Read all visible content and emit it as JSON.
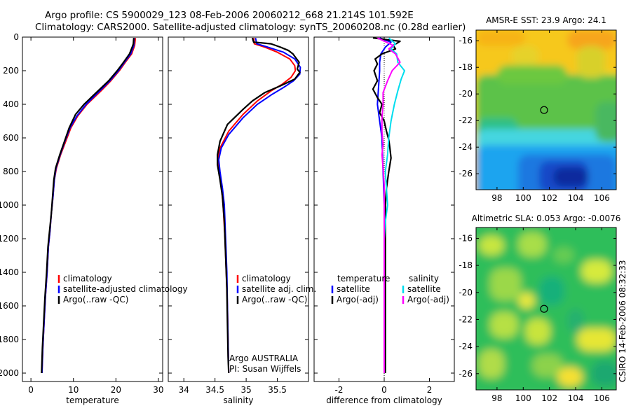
{
  "figure": {
    "title_line1": "Argo profile: CS 5900029_123 08-Feb-2006 20060212_668 21.214S 101.592E",
    "title_line2": "Climatology: CARS2000. Satellite-adjusted climatology: synTS_20060208.nc (0.28d earlier)",
    "side_label": "CSIRO 14-Feb-2006 08:32:33"
  },
  "colors": {
    "climatology": "#ff0000",
    "satellite": "#0000ff",
    "argo": "#000000",
    "sat_temp": "#0000ff",
    "sat_sal": "#00ddee",
    "argo_sal": "#ff00ff"
  },
  "chart_data": [
    {
      "type": "line",
      "id": "temperature",
      "xlabel": "temperature",
      "ylabel": "",
      "xlim": [
        -2,
        31
      ],
      "ylim": [
        2050,
        0
      ],
      "y_reversed": true,
      "xticks": [
        0,
        10,
        20,
        30
      ],
      "yticks": [
        0,
        200,
        400,
        600,
        800,
        1000,
        1200,
        1400,
        1600,
        1800,
        2000
      ],
      "legend": [
        "climatology",
        "satellite-adjusted climatology",
        "Argo(..raw -QC)"
      ],
      "series": [
        {
          "name": "climatology",
          "color": "#ff0000",
          "points": [
            [
              24.6,
              5
            ],
            [
              24.4,
              50
            ],
            [
              23.7,
              100
            ],
            [
              22.2,
              150
            ],
            [
              20.8,
              200
            ],
            [
              18.8,
              260
            ],
            [
              16.5,
              320
            ],
            [
              13.2,
              400
            ],
            [
              11,
              470
            ],
            [
              9.4,
              540
            ],
            [
              8.2,
              620
            ],
            [
              7,
              700
            ],
            [
              6,
              780
            ],
            [
              5.5,
              850
            ],
            [
              5.2,
              950
            ],
            [
              4.8,
              1050
            ],
            [
              4.5,
              1150
            ],
            [
              4.1,
              1250
            ],
            [
              3.8,
              1400
            ],
            [
              3.4,
              1550
            ],
            [
              3.1,
              1700
            ],
            [
              2.8,
              1850
            ],
            [
              2.6,
              2000
            ]
          ]
        },
        {
          "name": "satellite-adjusted climatology",
          "color": "#0000ff",
          "points": [
            [
              24.3,
              5
            ],
            [
              24.2,
              50
            ],
            [
              23.5,
              100
            ],
            [
              22,
              150
            ],
            [
              20.6,
              200
            ],
            [
              18.6,
              260
            ],
            [
              16.2,
              320
            ],
            [
              13,
              400
            ],
            [
              10.8,
              470
            ],
            [
              9.2,
              540
            ],
            [
              8,
              620
            ],
            [
              6.9,
              700
            ],
            [
              5.9,
              780
            ],
            [
              5.5,
              850
            ],
            [
              5.2,
              950
            ],
            [
              4.8,
              1050
            ],
            [
              4.5,
              1150
            ],
            [
              4.1,
              1250
            ],
            [
              3.8,
              1400
            ],
            [
              3.4,
              1550
            ],
            [
              3.1,
              1700
            ],
            [
              2.8,
              1850
            ],
            [
              2.6,
              2000
            ]
          ]
        },
        {
          "name": "Argo(..raw -QC)",
          "color": "#000000",
          "points": [
            [
              24.2,
              5
            ],
            [
              24.1,
              40
            ],
            [
              23.9,
              55
            ],
            [
              23.2,
              100
            ],
            [
              21.8,
              150
            ],
            [
              20.3,
              200
            ],
            [
              18.3,
              260
            ],
            [
              15.8,
              320
            ],
            [
              12.5,
              400
            ],
            [
              10.5,
              460
            ],
            [
              9,
              540
            ],
            [
              7.9,
              620
            ],
            [
              6.8,
              700
            ],
            [
              5.8,
              780
            ],
            [
              5.4,
              850
            ],
            [
              5.1,
              950
            ],
            [
              4.8,
              1050
            ],
            [
              4.4,
              1150
            ],
            [
              4,
              1250
            ],
            [
              3.7,
              1400
            ],
            [
              3.3,
              1550
            ],
            [
              3,
              1700
            ],
            [
              2.7,
              1850
            ],
            [
              2.5,
              2000
            ]
          ]
        }
      ]
    },
    {
      "type": "line",
      "id": "salinity",
      "xlabel": "salinity",
      "xlim": [
        33.75,
        36
      ],
      "ylim": [
        2050,
        0
      ],
      "y_reversed": true,
      "xticks": [
        34,
        34.5,
        35,
        35.5
      ],
      "legend": [
        "climatology",
        "satellite adj. clim.",
        "Argo(..raw -QC)"
      ],
      "annotation_line1": "Argo AUSTRALIA",
      "annotation_line2": "PI: Susan Wijffels",
      "series": [
        {
          "name": "climatology",
          "color": "#ff0000",
          "points": [
            [
              35.12,
              5
            ],
            [
              35.13,
              40
            ],
            [
              35.3,
              60
            ],
            [
              35.5,
              90
            ],
            [
              35.7,
              130
            ],
            [
              35.78,
              170
            ],
            [
              35.79,
              200
            ],
            [
              35.72,
              240
            ],
            [
              35.58,
              280
            ],
            [
              35.4,
              320
            ],
            [
              35.18,
              380
            ],
            [
              34.95,
              460
            ],
            [
              34.72,
              560
            ],
            [
              34.58,
              660
            ],
            [
              34.55,
              720
            ],
            [
              34.56,
              780
            ],
            [
              34.6,
              880
            ],
            [
              34.63,
              1000
            ],
            [
              34.66,
              1200
            ],
            [
              34.68,
              1400
            ],
            [
              34.7,
              1600
            ],
            [
              34.71,
              1800
            ],
            [
              34.72,
              2000
            ]
          ]
        },
        {
          "name": "satellite adj. clim.",
          "color": "#0000ff",
          "points": [
            [
              35.15,
              5
            ],
            [
              35.17,
              40
            ],
            [
              35.35,
              60
            ],
            [
              35.6,
              90
            ],
            [
              35.78,
              130
            ],
            [
              35.87,
              180
            ],
            [
              35.86,
              220
            ],
            [
              35.76,
              260
            ],
            [
              35.6,
              300
            ],
            [
              35.42,
              340
            ],
            [
              35.18,
              400
            ],
            [
              34.95,
              480
            ],
            [
              34.72,
              580
            ],
            [
              34.6,
              660
            ],
            [
              34.56,
              730
            ],
            [
              34.58,
              800
            ],
            [
              34.62,
              900
            ],
            [
              34.65,
              1000
            ],
            [
              34.67,
              1200
            ],
            [
              34.69,
              1400
            ],
            [
              34.7,
              1600
            ],
            [
              34.71,
              1800
            ],
            [
              34.72,
              2000
            ]
          ]
        },
        {
          "name": "Argo(..raw -QC)",
          "color": "#000000",
          "points": [
            [
              35.1,
              5
            ],
            [
              35.12,
              30
            ],
            [
              35.4,
              40
            ],
            [
              35.55,
              60
            ],
            [
              35.68,
              80
            ],
            [
              35.75,
              100
            ],
            [
              35.85,
              150
            ],
            [
              35.82,
              190
            ],
            [
              35.86,
              210
            ],
            [
              35.78,
              250
            ],
            [
              35.55,
              290
            ],
            [
              35.3,
              330
            ],
            [
              35.1,
              380
            ],
            [
              34.95,
              430
            ],
            [
              34.7,
              520
            ],
            [
              34.58,
              620
            ],
            [
              34.54,
              700
            ],
            [
              34.54,
              760
            ],
            [
              34.58,
              850
            ],
            [
              34.62,
              950
            ],
            [
              34.65,
              1100
            ],
            [
              34.67,
              1300
            ],
            [
              34.69,
              1500
            ],
            [
              34.7,
              1700
            ],
            [
              34.71,
              1900
            ],
            [
              34.72,
              2000
            ]
          ]
        }
      ]
    },
    {
      "type": "line",
      "id": "difference",
      "xlabel": "difference from climatology",
      "xlim": [
        -3.1,
        3.1
      ],
      "ylim": [
        2050,
        0
      ],
      "y_reversed": true,
      "xticks": [
        -2,
        0,
        2
      ],
      "legend_left_title": "temperature",
      "legend_right_title": "salinity",
      "legend_left": [
        "satellite",
        "Argo(-adj)"
      ],
      "legend_right": [
        "satellite",
        "Argo(-adj)"
      ],
      "series": [
        {
          "name": "temperature satellite",
          "color": "#0000ff",
          "points": [
            [
              -0.2,
              5
            ],
            [
              0.3,
              30
            ],
            [
              0.05,
              60
            ],
            [
              -0.15,
              100
            ],
            [
              -0.2,
              150
            ],
            [
              -0.2,
              200
            ],
            [
              -0.25,
              300
            ],
            [
              -0.3,
              400
            ],
            [
              -0.2,
              500
            ],
            [
              -0.1,
              600
            ],
            [
              -0.05,
              800
            ],
            [
              0,
              1000
            ],
            [
              0,
              1200
            ],
            [
              0,
              1500
            ],
            [
              0,
              2000
            ]
          ]
        },
        {
          "name": "temperature Argo(-adj)",
          "color": "#000000",
          "points": [
            [
              -0.5,
              5
            ],
            [
              0.7,
              25
            ],
            [
              0.4,
              50
            ],
            [
              0.5,
              70
            ],
            [
              -0.1,
              100
            ],
            [
              -0.4,
              130
            ],
            [
              -0.3,
              160
            ],
            [
              -0.45,
              200
            ],
            [
              -0.3,
              260
            ],
            [
              -0.5,
              310
            ],
            [
              -0.3,
              360
            ],
            [
              -0.1,
              400
            ],
            [
              -0.2,
              450
            ],
            [
              0,
              500
            ],
            [
              0.1,
              560
            ],
            [
              0.2,
              610
            ],
            [
              0.25,
              660
            ],
            [
              0.3,
              720
            ],
            [
              0.2,
              800
            ],
            [
              0.1,
              900
            ],
            [
              0.05,
              1000
            ],
            [
              0.05,
              1200
            ],
            [
              0.05,
              1500
            ],
            [
              0.05,
              2000
            ]
          ]
        },
        {
          "name": "salinity satellite",
          "color": "#00ddee",
          "points": [
            [
              0.2,
              5
            ],
            [
              0.5,
              40
            ],
            [
              0.3,
              70
            ],
            [
              0.55,
              100
            ],
            [
              0.6,
              150
            ],
            [
              0.9,
              200
            ],
            [
              0.75,
              250
            ],
            [
              0.6,
              320
            ],
            [
              0.45,
              400
            ],
            [
              0.3,
              500
            ],
            [
              0.2,
              600
            ],
            [
              0.15,
              700
            ],
            [
              0.05,
              800
            ],
            [
              0.1,
              900
            ],
            [
              0.15,
              1000
            ],
            [
              0.05,
              1100
            ],
            [
              0,
              1200
            ],
            [
              0,
              1500
            ],
            [
              0,
              2000
            ]
          ]
        },
        {
          "name": "salinity Argo(-adj)",
          "color": "#ff00ff",
          "points": [
            [
              -0.3,
              5
            ],
            [
              0.1,
              30
            ],
            [
              0.4,
              50
            ],
            [
              0.2,
              70
            ],
            [
              0.5,
              100
            ],
            [
              0.7,
              150
            ],
            [
              0.35,
              200
            ],
            [
              0.15,
              260
            ],
            [
              -0.05,
              330
            ],
            [
              -0.05,
              400
            ],
            [
              -0.1,
              480
            ],
            [
              -0.1,
              560
            ],
            [
              -0.05,
              640
            ],
            [
              -0.1,
              700
            ],
            [
              -0.05,
              780
            ],
            [
              0,
              880
            ],
            [
              0,
              1000
            ],
            [
              0,
              1500
            ],
            [
              0,
              2000
            ]
          ]
        }
      ]
    },
    {
      "type": "heatmap",
      "id": "sst",
      "title": "AMSR-E SST: 23.9 Argo: 24.1",
      "xlim": [
        96.4,
        107.1
      ],
      "ylim": [
        -27.2,
        -15.2
      ],
      "xticks": [
        98,
        100,
        102,
        104,
        106
      ],
      "yticks": [
        -16,
        -18,
        -20,
        -22,
        -24,
        -26
      ],
      "marker": [
        101.59,
        -21.21
      ]
    },
    {
      "type": "heatmap",
      "id": "sla",
      "title": "Altimetric SLA: 0.053 Argo: -0.0076",
      "xlim": [
        96.4,
        107.1
      ],
      "ylim": [
        -27.2,
        -15.2
      ],
      "xticks": [
        98,
        100,
        102,
        104,
        106
      ],
      "yticks": [
        -16,
        -18,
        -20,
        -22,
        -24,
        -26
      ],
      "marker": [
        101.59,
        -21.21
      ]
    }
  ]
}
